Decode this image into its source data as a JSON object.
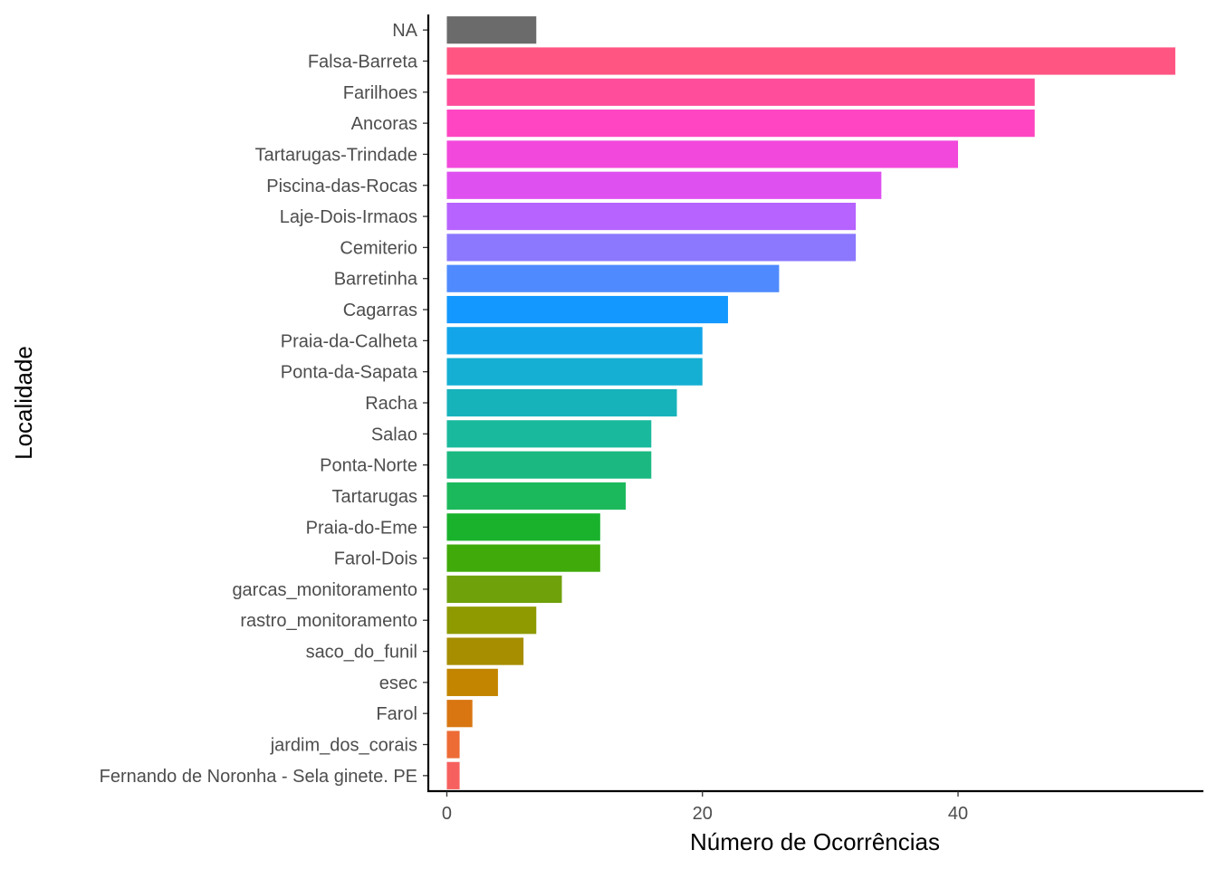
{
  "chart_data": {
    "type": "bar",
    "orientation": "horizontal",
    "xlabel": "Número de Ocorrências",
    "ylabel": "Localidade",
    "xlim": [
      -1.45,
      59.2
    ],
    "xticks": [
      0,
      20,
      40
    ],
    "grid": false,
    "legend": "none",
    "categories": [
      "NA",
      "Falsa-Barreta",
      "Farilhoes",
      "Ancoras",
      "Tartarugas-Trindade",
      "Piscina-das-Rocas",
      "Laje-Dois-Irmaos",
      "Cemiterio",
      "Barretinha",
      "Cagarras",
      "Praia-da-Calheta",
      "Ponta-da-Sapata",
      "Racha",
      "Salao",
      "Ponta-Norte",
      "Tartarugas",
      "Praia-do-Eme",
      "Farol-Dois",
      "garcas_monitoramento",
      "rastro_monitoramento",
      "saco_do_funil",
      "esec",
      "Farol",
      "jardim_dos_corais",
      "Fernando de Noronha - Sela ginete. PE"
    ],
    "values": [
      7,
      57,
      46,
      46,
      40,
      34,
      32,
      32,
      26,
      22,
      20,
      20,
      18,
      16,
      16,
      14,
      12,
      12,
      9,
      7,
      6,
      4,
      2,
      1,
      1
    ],
    "colors": [
      "#6b6b6b",
      "#ff5582",
      "#ff4d9b",
      "#ff45c2",
      "#f248db",
      "#de51f0",
      "#b663ff",
      "#8b78ff",
      "#4f8bff",
      "#1398ff",
      "#12a5ea",
      "#14afd3",
      "#17b3bb",
      "#19b99d",
      "#1bb981",
      "#1cb95c",
      "#1ab22d",
      "#3faa0a",
      "#6fa10a",
      "#8e9a00",
      "#a68e00",
      "#c38500",
      "#d97612",
      "#ed6c35",
      "#f6615f"
    ]
  }
}
